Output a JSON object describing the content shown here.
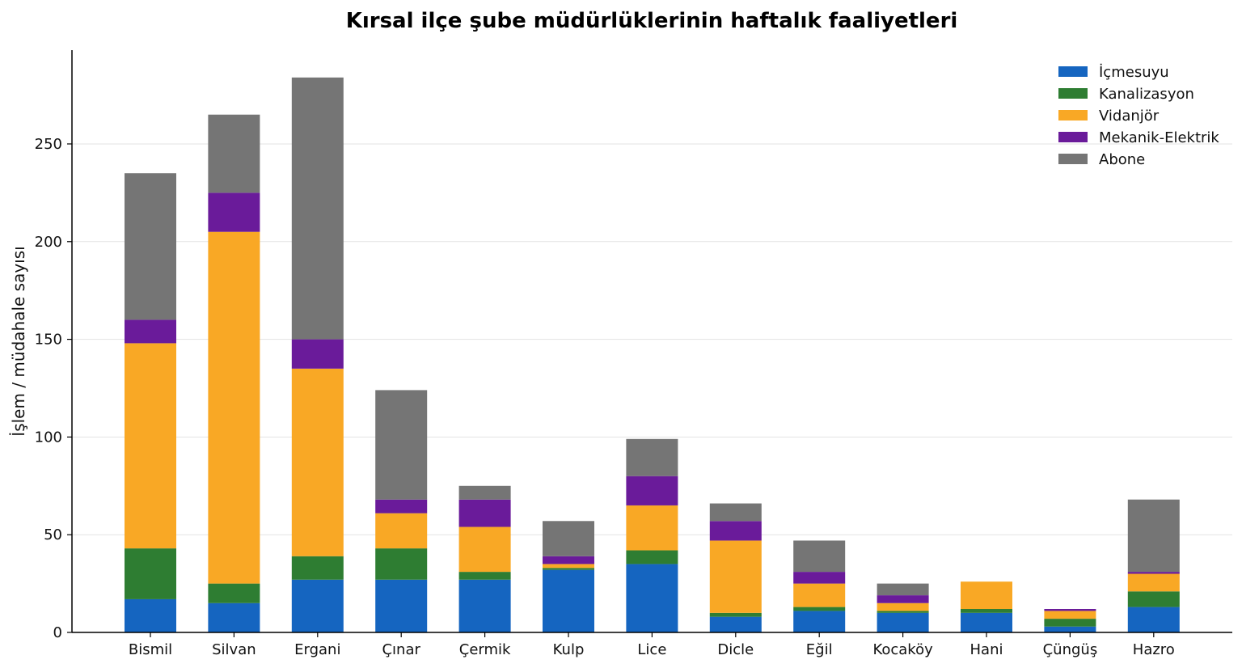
{
  "chart_data": {
    "type": "bar",
    "stacked": true,
    "title": "Kırsal ilçe şube müdürlüklerinin haftalık faaliyetleri",
    "xlabel": "",
    "ylabel": "İşlem / müdahale sayısı",
    "ylim": [
      0,
      298
    ],
    "yticks": [
      0,
      50,
      100,
      150,
      200,
      250
    ],
    "grid": "y",
    "legend_position": "top-right",
    "categories": [
      "Bismil",
      "Silvan",
      "Ergani",
      "Çınar",
      "Çermik",
      "Kulp",
      "Lice",
      "Dicle",
      "Eğil",
      "Kocaköy",
      "Hani",
      "Çüngüş",
      "Hazro"
    ],
    "series": [
      {
        "name": "İçmesuyu",
        "color": "#1565c0",
        "values": [
          17,
          15,
          27,
          27,
          27,
          32,
          35,
          8,
          11,
          10,
          10,
          3,
          13
        ]
      },
      {
        "name": "Kanalizasyon",
        "color": "#2e7d32",
        "values": [
          26,
          10,
          12,
          16,
          4,
          1,
          7,
          2,
          2,
          1,
          2,
          4,
          8
        ]
      },
      {
        "name": "Vidanjör",
        "color": "#f9a825",
        "values": [
          105,
          180,
          96,
          18,
          23,
          2,
          23,
          37,
          12,
          4,
          14,
          4,
          9
        ]
      },
      {
        "name": "Mekanik-Elektrik",
        "color": "#6a1b9a",
        "values": [
          12,
          20,
          15,
          7,
          14,
          4,
          15,
          10,
          6,
          4,
          0,
          1,
          1
        ]
      },
      {
        "name": "Abone",
        "color": "#757575",
        "values": [
          75,
          40,
          134,
          56,
          7,
          18,
          19,
          9,
          16,
          6,
          0,
          0,
          37
        ]
      }
    ]
  }
}
